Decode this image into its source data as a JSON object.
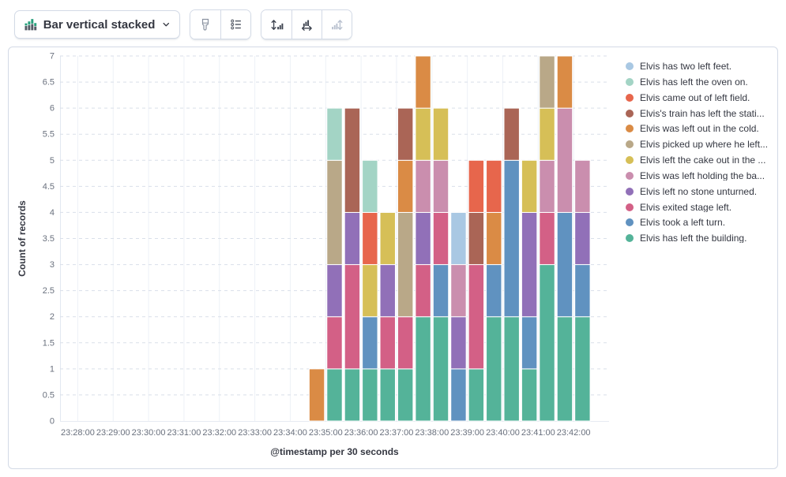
{
  "toolbar": {
    "chart_type_label": "Bar vertical stacked",
    "chart_type_icon": "bar-vertical-stacked-icon",
    "chevron_icon": "chevron-down-icon",
    "style_buttons": [
      {
        "icon": "paint-brush-icon",
        "disabled": false
      },
      {
        "icon": "legend-list-icon",
        "disabled": false
      }
    ],
    "axis_buttons": [
      {
        "icon": "axis-left-icon",
        "disabled": false
      },
      {
        "icon": "axis-bottom-icon",
        "disabled": false
      },
      {
        "icon": "axis-right-icon",
        "disabled": true
      }
    ]
  },
  "chart_data": {
    "type": "bar",
    "stacked": true,
    "grid": true,
    "legend_position": "right",
    "title": "",
    "xlabel": "@timestamp per 30 seconds",
    "ylabel": "Count of records",
    "ylim": [
      0,
      7
    ],
    "y_tick_labels": [
      "0",
      "0.5",
      "1",
      "1.5",
      "2",
      "2.5",
      "3",
      "3.5",
      "4",
      "4.5",
      "5",
      "5.5",
      "6",
      "6.5",
      "7"
    ],
    "x_tick_labels": [
      "23:28:00",
      "23:29:00",
      "23:30:00",
      "23:31:00",
      "23:32:00",
      "23:33:00",
      "23:34:00",
      "23:35:00",
      "23:36:00",
      "23:37:00",
      "23:38:00",
      "23:39:00",
      "23:40:00",
      "23:41:00",
      "23:42:00"
    ],
    "x_domain": {
      "start": "23:27:30",
      "interval_seconds": 30,
      "buckets": 31
    },
    "categories": [
      "23:34:30",
      "23:35:00",
      "23:35:30",
      "23:36:00",
      "23:36:30",
      "23:37:00",
      "23:37:30",
      "23:38:00",
      "23:38:30",
      "23:39:00",
      "23:39:30",
      "23:40:00",
      "23:40:30",
      "23:41:00",
      "23:41:30",
      "23:42:00"
    ],
    "stack_order": "reverse_legend",
    "series": [
      {
        "name": "Elvis has two left feet.",
        "color": "#A9C8E3",
        "values": [
          0,
          0,
          0,
          0,
          0,
          0,
          0,
          0,
          1,
          0,
          0,
          0,
          0,
          0,
          0,
          0
        ]
      },
      {
        "name": "Elvis has left the oven on.",
        "color": "#A3D4C5",
        "values": [
          0,
          1,
          0,
          1,
          0,
          0,
          0,
          0,
          0,
          0,
          0,
          0,
          0,
          0,
          0,
          0
        ]
      },
      {
        "name": "Elvis came out of left field.",
        "color": "#E7664C",
        "values": [
          0,
          0,
          0,
          1,
          0,
          0,
          0,
          0,
          0,
          1,
          1,
          0,
          0,
          0,
          0,
          0
        ]
      },
      {
        "name": "Elvis's train has left the stati...",
        "color": "#AA6556",
        "values": [
          0,
          0,
          2,
          0,
          0,
          1,
          0,
          0,
          0,
          1,
          0,
          1,
          0,
          0,
          0,
          0
        ]
      },
      {
        "name": "Elvis was left out in the cold.",
        "color": "#DA8B45",
        "values": [
          1,
          0,
          0,
          0,
          0,
          1,
          1,
          0,
          0,
          0,
          1,
          0,
          0,
          0,
          1,
          0
        ]
      },
      {
        "name": "Elvis picked up where he left...",
        "color": "#B9A888",
        "values": [
          0,
          2,
          0,
          0,
          0,
          2,
          0,
          0,
          0,
          0,
          0,
          0,
          0,
          1,
          0,
          0
        ]
      },
      {
        "name": "Elvis left the cake out in the ...",
        "color": "#D6BF57",
        "values": [
          0,
          0,
          0,
          1,
          1,
          0,
          1,
          1,
          0,
          0,
          0,
          0,
          1,
          1,
          0,
          0
        ]
      },
      {
        "name": "Elvis was left holding the ba...",
        "color": "#CA8EAE",
        "values": [
          0,
          0,
          0,
          0,
          0,
          0,
          1,
          1,
          1,
          0,
          0,
          0,
          0,
          1,
          2,
          1
        ]
      },
      {
        "name": "Elvis left no stone unturned.",
        "color": "#9170B8",
        "values": [
          0,
          1,
          1,
          0,
          1,
          0,
          1,
          0,
          1,
          0,
          0,
          0,
          2,
          0,
          0,
          1
        ]
      },
      {
        "name": "Elvis exited stage left.",
        "color": "#D36086",
        "values": [
          0,
          1,
          2,
          0,
          1,
          1,
          1,
          1,
          0,
          2,
          0,
          0,
          0,
          1,
          0,
          0
        ]
      },
      {
        "name": "Elvis took a left turn.",
        "color": "#6092C0",
        "values": [
          0,
          0,
          0,
          1,
          0,
          0,
          0,
          1,
          1,
          0,
          1,
          3,
          1,
          0,
          2,
          1
        ]
      },
      {
        "name": "Elvis has left the building.",
        "color": "#54B399",
        "values": [
          0,
          1,
          1,
          1,
          1,
          1,
          2,
          2,
          0,
          1,
          2,
          2,
          1,
          3,
          2,
          2
        ]
      }
    ]
  }
}
